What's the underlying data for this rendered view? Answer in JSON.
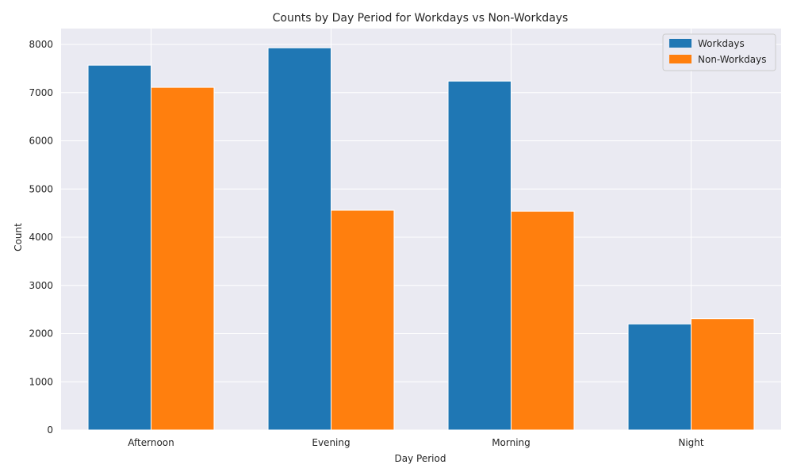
{
  "chart_data": {
    "type": "bar",
    "title": "Counts by Day Period for Workdays vs Non-Workdays",
    "xlabel": "Day Period",
    "ylabel": "Count",
    "categories": [
      "Afternoon",
      "Evening",
      "Morning",
      "Night"
    ],
    "series": [
      {
        "name": "Workdays",
        "values": [
          7570,
          7930,
          7240,
          2200
        ],
        "color": "#1f77b4"
      },
      {
        "name": "Non-Workdays",
        "values": [
          7110,
          4560,
          4540,
          2310
        ],
        "color": "#ff7f0e"
      }
    ],
    "ylim": [
      0,
      8330
    ],
    "yticks": [
      0,
      1000,
      2000,
      3000,
      4000,
      5000,
      6000,
      7000,
      8000
    ],
    "grid": true,
    "legend_position": "top-right",
    "colors": {
      "plot_background": "#eaeaf2",
      "grid": "#ffffff"
    }
  }
}
